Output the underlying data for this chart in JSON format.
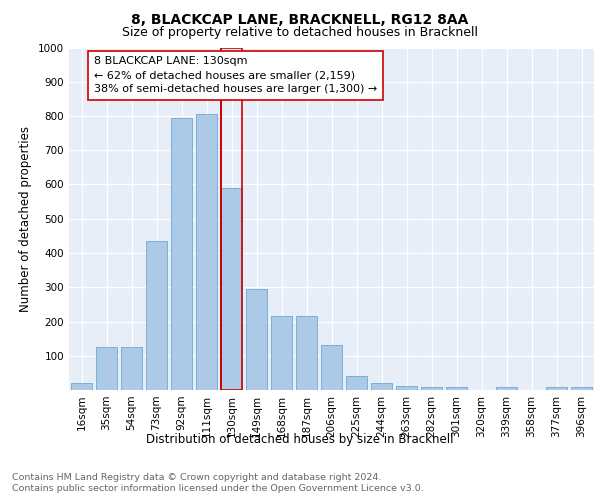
{
  "title": "8, BLACKCAP LANE, BRACKNELL, RG12 8AA",
  "subtitle": "Size of property relative to detached houses in Bracknell",
  "xlabel": "Distribution of detached houses by size in Bracknell",
  "ylabel": "Number of detached properties",
  "footer_line1": "Contains HM Land Registry data © Crown copyright and database right 2024.",
  "footer_line2": "Contains public sector information licensed under the Open Government Licence v3.0.",
  "categories": [
    "16sqm",
    "35sqm",
    "54sqm",
    "73sqm",
    "92sqm",
    "111sqm",
    "130sqm",
    "149sqm",
    "168sqm",
    "187sqm",
    "206sqm",
    "225sqm",
    "244sqm",
    "263sqm",
    "282sqm",
    "301sqm",
    "320sqm",
    "339sqm",
    "358sqm",
    "377sqm",
    "396sqm"
  ],
  "values": [
    20,
    125,
    125,
    435,
    795,
    805,
    590,
    295,
    215,
    215,
    130,
    40,
    20,
    12,
    8,
    8,
    0,
    8,
    0,
    8,
    8
  ],
  "bar_color": "#adc9e8",
  "bar_edge_color": "#6aaad4",
  "highlight_index": 6,
  "highlight_line_color": "#cc0000",
  "annotation_text": "8 BLACKCAP LANE: 130sqm\n← 62% of detached houses are smaller (2,159)\n38% of semi-detached houses are larger (1,300) →",
  "annotation_box_color": "#cc0000",
  "ylim": [
    0,
    1000
  ],
  "yticks": [
    0,
    100,
    200,
    300,
    400,
    500,
    600,
    700,
    800,
    900,
    1000
  ],
  "plot_bg_color": "#e8eef7",
  "title_fontsize": 10,
  "subtitle_fontsize": 9,
  "axis_label_fontsize": 8.5,
  "tick_fontsize": 7.5,
  "annotation_fontsize": 8,
  "footer_fontsize": 6.8
}
